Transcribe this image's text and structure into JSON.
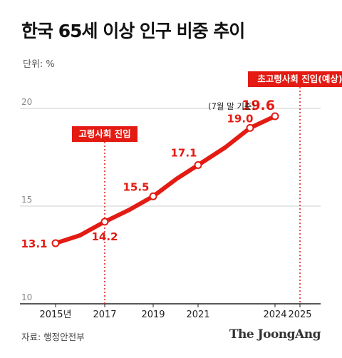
{
  "title": "한국 65세 이상 인구 비중 추이",
  "unit_label": "단위: %",
  "source": "자료: 행정안전부",
  "brand": "The JoongAng",
  "colors": {
    "accent": "#e31b13",
    "axis": "#222222",
    "grid": "#cfcfcf",
    "muted": "#888888"
  },
  "chart_data": {
    "type": "line",
    "title": "한국 65세 이상 인구 비중 추이",
    "xlabel": "",
    "ylabel": "단위: %",
    "ylim": [
      10,
      20
    ],
    "xlim": [
      2015,
      2025
    ],
    "grid": true,
    "yticks": [
      "20",
      "15",
      "10"
    ],
    "xticks": [
      "2015년",
      "2017",
      "2019",
      "2021",
      "2024",
      "2025"
    ],
    "series": [
      {
        "x": [
          2015,
          2016,
          2017,
          2018,
          2019,
          2020,
          2021,
          2022,
          2023,
          2024
        ],
        "values": [
          13.1,
          13.5,
          14.2,
          14.8,
          15.5,
          16.4,
          17.1,
          18.0,
          19.0,
          19.6
        ]
      }
    ],
    "point_labels": [
      {
        "x": 2015,
        "text": "13.1"
      },
      {
        "x": 2017,
        "text": "14.2"
      },
      {
        "x": 2019,
        "text": "15.5"
      },
      {
        "x": 2021,
        "text": "17.1"
      },
      {
        "x": 2023,
        "text": "19.0"
      },
      {
        "x": 2024,
        "text": "19.6"
      }
    ],
    "note_2024": "(7월 말 기준)",
    "annotations": [
      {
        "x": 2017,
        "label": "고령사회 진입"
      },
      {
        "x": 2025,
        "label": "초고령사회 진입(예상)"
      }
    ]
  }
}
